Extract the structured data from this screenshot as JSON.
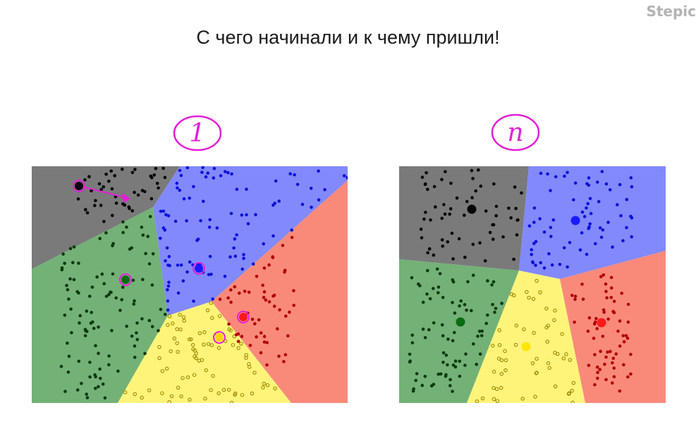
{
  "brand": "Stepic",
  "title": "С чего начинали и к чему пришли!",
  "panels": [
    {
      "label": "1"
    },
    {
      "label": "n"
    }
  ],
  "colors": {
    "black_region": "#7a7a7a",
    "blue_region": "#8289fb",
    "green_region": "#73b177",
    "yellow_region": "#fff47a",
    "red_region": "#f98a7a",
    "black_points": "#000000",
    "blue_points": "#0b12d9",
    "green_points": "#0b3a0b",
    "yellow_points": "#9c8a00",
    "red_points": "#b30000",
    "annotation": "#e41fd8"
  }
}
